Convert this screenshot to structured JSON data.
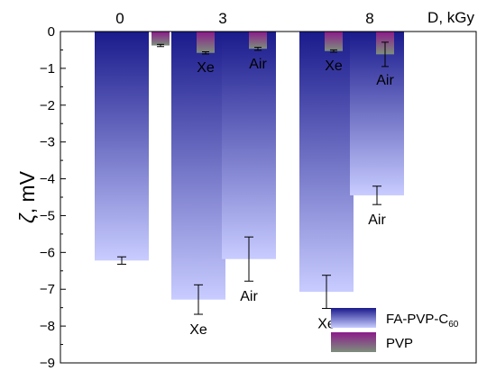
{
  "chart_data": {
    "type": "bar",
    "title": "",
    "ylabel_symbol": "ζ",
    "ylabel_text": ", mV",
    "x_axis_title": "D, kGy",
    "ylim": [
      -9,
      0
    ],
    "yticks": [
      0,
      -1,
      -2,
      -3,
      -4,
      -5,
      -6,
      -7,
      -8,
      -9
    ],
    "ytick_labels": [
      "0",
      "−1",
      "−2",
      "−3",
      "−4",
      "−5",
      "−6",
      "−7",
      "−8",
      "−9"
    ],
    "dose_groups": [
      "0",
      "3",
      "8"
    ],
    "legend": {
      "position": "bottom-right",
      "entries": [
        {
          "series": "FA-PVP-C60",
          "text": "FA-PVP-C",
          "sub": "60"
        },
        {
          "series": "PVP",
          "text": "PVP",
          "sub": ""
        }
      ]
    },
    "series": [
      {
        "name": "FA-PVP-C60",
        "color_top": "#1a1a8c",
        "color_bottom": "#c8ccff"
      },
      {
        "name": "PVP",
        "color_top": "#8b1a8b",
        "color_bottom": "#7d8f7d"
      }
    ],
    "bars": [
      {
        "series": "FA-PVP-C60",
        "dose": "0",
        "condition": "",
        "value": -6.22,
        "err": 0.1
      },
      {
        "series": "PVP",
        "dose": "0",
        "condition": "",
        "value": -0.38,
        "err": 0.03
      },
      {
        "series": "FA-PVP-C60",
        "dose": "3",
        "condition": "Xe",
        "value": -7.28,
        "err": 0.4
      },
      {
        "series": "PVP",
        "dose": "3",
        "condition": "Xe",
        "value": -0.58,
        "err": 0.03
      },
      {
        "series": "FA-PVP-C60",
        "dose": "3",
        "condition": "Air",
        "value": -6.18,
        "err": 0.6
      },
      {
        "series": "PVP",
        "dose": "3",
        "condition": "Air",
        "value": -0.47,
        "err": 0.04
      },
      {
        "series": "FA-PVP-C60",
        "dose": "8",
        "condition": "Xe",
        "value": -7.07,
        "err": 0.45
      },
      {
        "series": "PVP",
        "dose": "8",
        "condition": "Xe",
        "value": -0.53,
        "err": 0.03
      },
      {
        "series": "FA-PVP-C60",
        "dose": "8",
        "condition": "Air",
        "value": -4.45,
        "err": 0.25
      },
      {
        "series": "PVP",
        "dose": "8",
        "condition": "Air",
        "value": -0.62,
        "err": 0.33
      }
    ]
  }
}
